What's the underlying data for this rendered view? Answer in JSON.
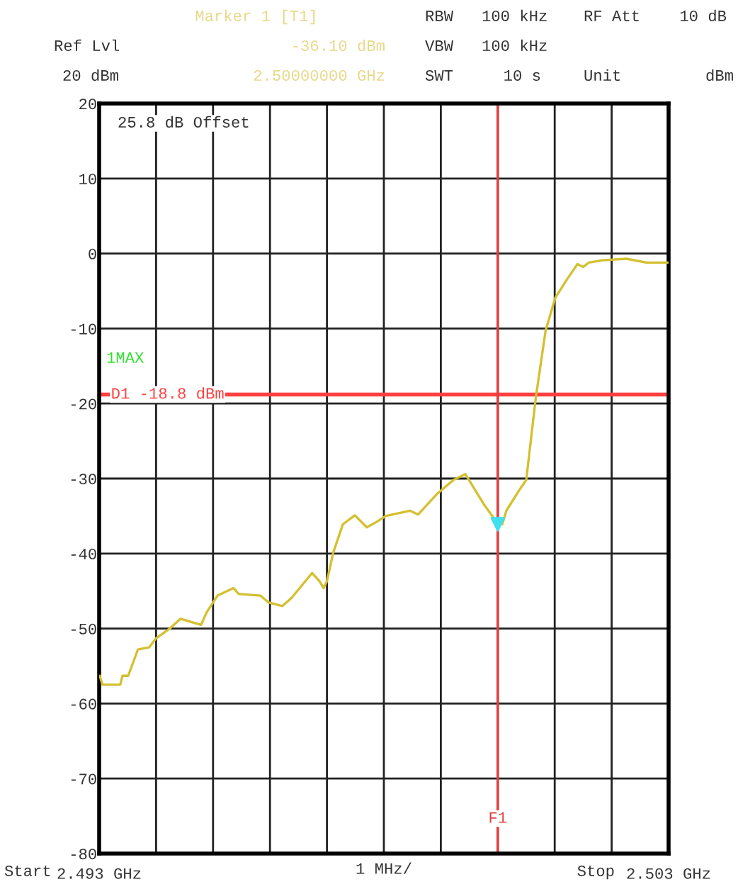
{
  "chart_data": {
    "type": "line",
    "xlabel": "1 MHz/",
    "xlim": [
      2.493,
      2.503
    ],
    "xticks": [
      {
        "value": 2.493,
        "label": "2.493 GHz"
      },
      {
        "value": 2.494,
        "label": null
      },
      {
        "value": 2.495,
        "label": null
      },
      {
        "value": 2.496,
        "label": null
      },
      {
        "value": 2.497,
        "label": null
      },
      {
        "value": 2.498,
        "label": null
      },
      {
        "value": 2.499,
        "label": null
      },
      {
        "value": 2.5,
        "label": null
      },
      {
        "value": 2.501,
        "label": null
      },
      {
        "value": 2.502,
        "label": null
      },
      {
        "value": 2.503,
        "label": "2.503 GHz"
      }
    ],
    "ylim": [
      -80,
      20
    ],
    "yticks": [
      -80,
      -70,
      -60,
      -50,
      -40,
      -30,
      -20,
      -10,
      0,
      10,
      20
    ],
    "grid": true,
    "series": [
      {
        "color": "#d4c030",
        "marker": "none",
        "line_style": "solid",
        "x": [
          2.49301,
          2.49306,
          2.49337,
          2.49341,
          2.49351,
          2.49368,
          2.49388,
          2.494,
          2.49424,
          2.49443,
          2.49465,
          2.49479,
          2.49489,
          2.49508,
          2.49536,
          2.49545,
          2.49583,
          2.49597,
          2.49622,
          2.49638,
          2.49674,
          2.49687,
          2.49694,
          2.497,
          2.49711,
          2.49728,
          2.49749,
          2.4977,
          2.49787,
          2.49803,
          2.49846,
          2.4986,
          2.49894,
          2.49922,
          2.49943,
          2.49977,
          2.49998,
          2.50008,
          2.50015,
          2.50039,
          2.5005,
          2.50067,
          2.50084,
          2.50101,
          2.50122,
          2.5014,
          2.5015,
          2.5016,
          2.50184,
          2.50226,
          2.50261,
          2.50299
        ],
        "values": [
          -56.3,
          -57.5,
          -57.5,
          -56.3,
          -56.3,
          -52.8,
          -52.5,
          -51.3,
          -50,
          -48.7,
          -49.2,
          -49.5,
          -47.8,
          -45.6,
          -44.6,
          -45.4,
          -45.6,
          -46.5,
          -47,
          -45.9,
          -42.6,
          -43.7,
          -44.6,
          -43.7,
          -39.9,
          -36.1,
          -34.9,
          -36.5,
          -35.8,
          -35,
          -34.3,
          -34.8,
          -32,
          -30.2,
          -29.4,
          -33.6,
          -35.8,
          -36.1,
          -34.3,
          -31.4,
          -30.2,
          -19.1,
          -10.3,
          -5.9,
          -3.4,
          -1.4,
          -1.8,
          -1.2,
          -0.9,
          -0.7,
          -1.2,
          -1.2
        ]
      },
      {
        "type": "scatter",
        "color": "#40e0f0",
        "marker": "triangle",
        "x": [
          2.5
        ],
        "values": [
          -36.1
        ]
      }
    ],
    "ref_lines": [
      {
        "axis": "y",
        "value": -18.8,
        "label": "D1 -18.8 dBm",
        "color": "#ff4040",
        "line_style": "solid"
      },
      {
        "axis": "x",
        "value": 2.5,
        "label": "F1",
        "color": "#e04040",
        "line_style": "solid"
      }
    ],
    "annotations": [
      "Marker 1 [T1]",
      "-36.10 dBm",
      "2.50000000 GHz",
      "Ref Lvl",
      "20 dBm",
      "RBW",
      "100 kHz",
      "VBW",
      "100 kHz",
      "SWT",
      "10 s",
      "RF Att",
      "10 dB",
      "Unit",
      "dBm",
      "25.8 dB Offset",
      "1MAX",
      "Start",
      "Stop"
    ]
  }
}
